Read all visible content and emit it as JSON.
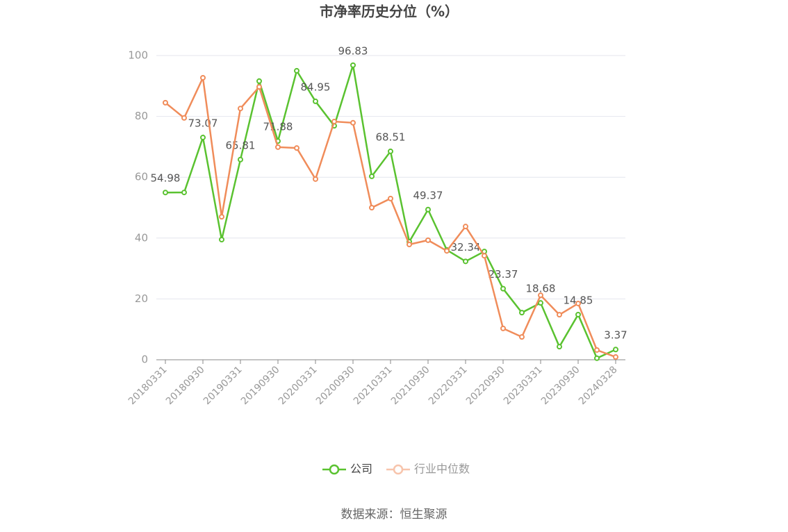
{
  "chart_data": {
    "type": "line",
    "title": "市净率历史分位（%）",
    "source": "数据来源：恒生聚源",
    "categories": [
      "20180331",
      null,
      "20180930",
      null,
      "20190331",
      null,
      "20190930",
      null,
      "20200331",
      null,
      "20200930",
      null,
      "20210331",
      null,
      "20210930",
      null,
      "20220331",
      null,
      "20220930",
      null,
      "20230331",
      null,
      "20230930",
      null,
      "20240328"
    ],
    "series": [
      {
        "name": "公司",
        "color": "#5ac230",
        "values": [
          54.98,
          55.0,
          73.07,
          39.5,
          65.81,
          91.6,
          71.88,
          95.0,
          84.95,
          76.9,
          96.83,
          60.3,
          68.51,
          38.8,
          49.37,
          36.1,
          32.34,
          35.6,
          23.37,
          15.5,
          18.68,
          4.3,
          14.85,
          0.5,
          3.37
        ],
        "value_labels": [
          "54.98",
          null,
          "73.07",
          null,
          "65.81",
          null,
          "71.88",
          null,
          "84.95",
          null,
          "96.83",
          null,
          "68.51",
          null,
          "49.37",
          null,
          "32.34",
          null,
          "23.37",
          null,
          "18.68",
          null,
          "14.85",
          null,
          "3.37"
        ]
      },
      {
        "name": "行业中位数",
        "color": "#f08c5a",
        "values": [
          84.5,
          79.5,
          92.7,
          47.0,
          82.6,
          89.7,
          69.9,
          69.6,
          59.4,
          78.3,
          77.9,
          50.0,
          53.0,
          37.9,
          39.3,
          35.8,
          43.8,
          34.2,
          10.3,
          7.5,
          21.2,
          14.8,
          18.5,
          3.2,
          0.9
        ]
      }
    ],
    "ylim": [
      0,
      100
    ],
    "yticks": [
      0,
      20,
      40,
      60,
      80,
      100
    ],
    "grid": true,
    "legend": "bottom"
  }
}
